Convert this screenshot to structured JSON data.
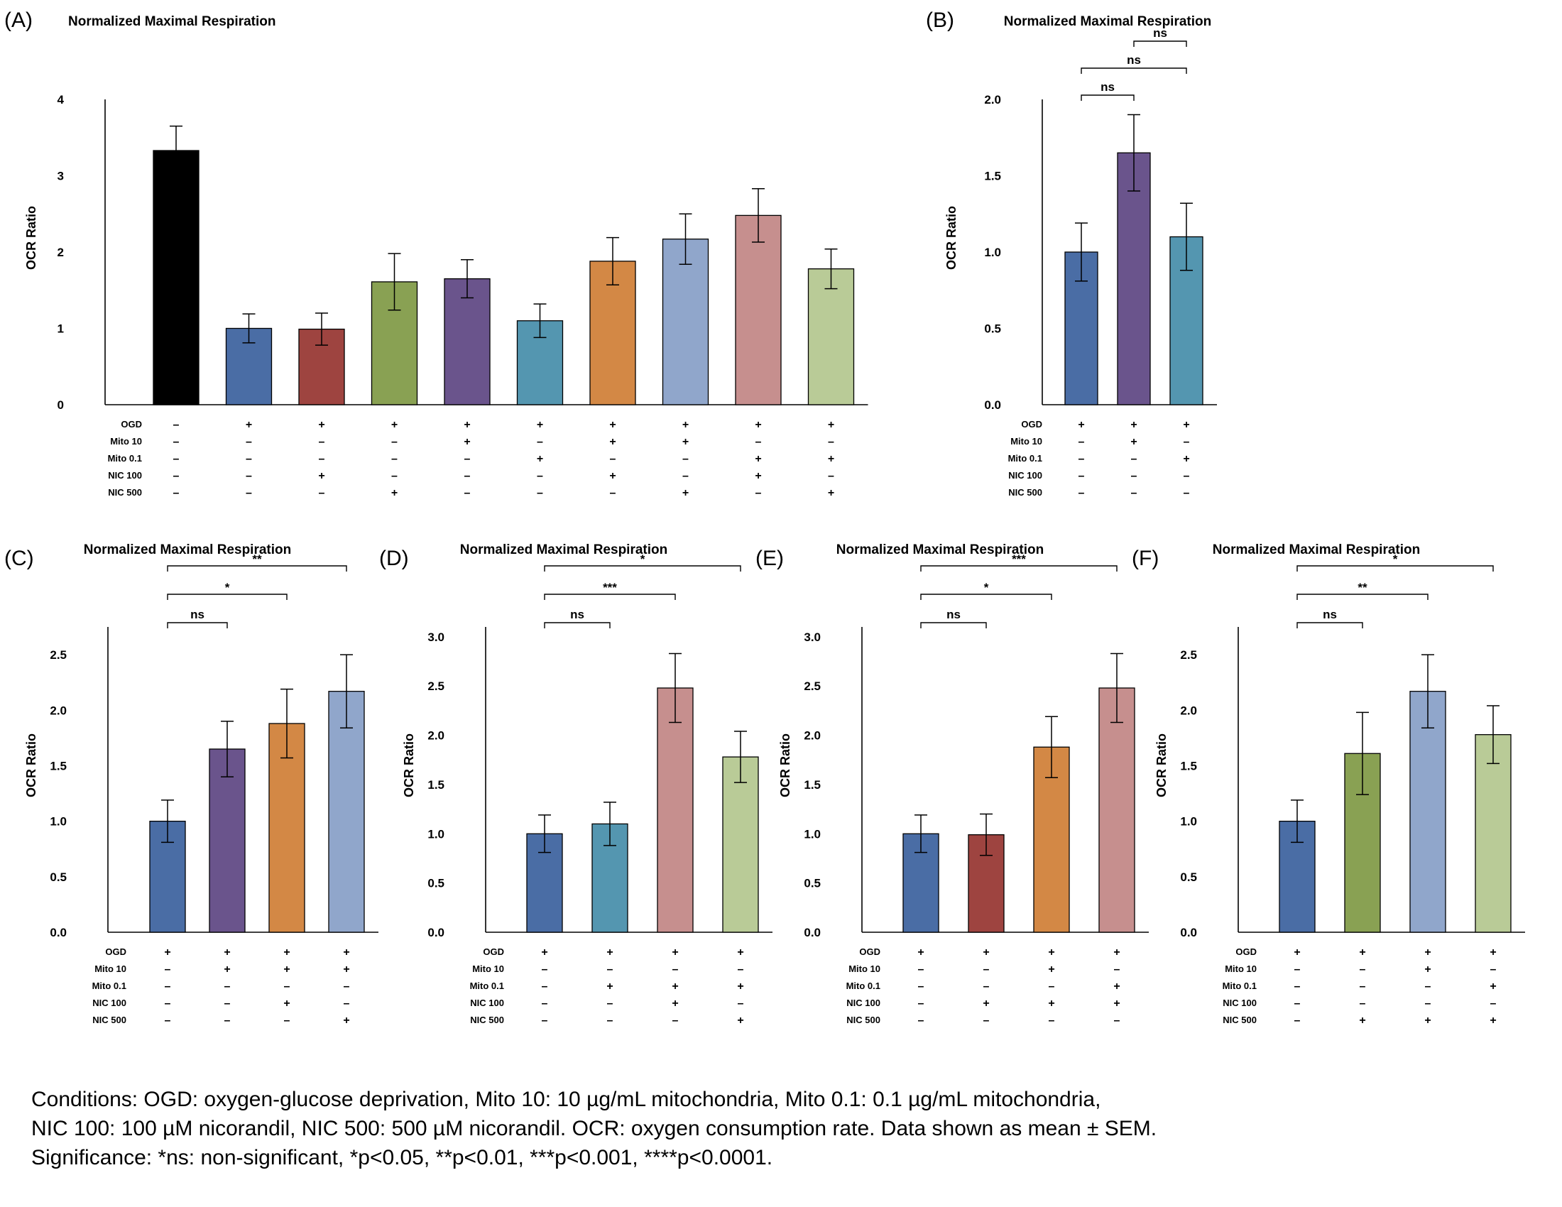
{
  "colors": {
    "black": "#000000",
    "blue": "#4a6da5",
    "red": "#9e4440",
    "olive": "#89a153",
    "purple": "#6a548c",
    "teal": "#5496b0",
    "orange": "#d38845",
    "lightblue": "#90a6cb",
    "pink": "#c68f8e",
    "lightgreen": "#b9cb97"
  },
  "chart_data": [
    {
      "id": "A",
      "panel_label": "(A)",
      "type": "bar",
      "title": "Normalized Maximal Respiration",
      "ylabel": "OCR Ratio",
      "ylim": [
        0,
        4
      ],
      "yticks": [
        0,
        1,
        2,
        3,
        4
      ],
      "ytick_labels": [
        "0",
        "1",
        "2",
        "3",
        "4"
      ],
      "grid": false,
      "bars": [
        {
          "value": 3.33,
          "err": 0.32,
          "color": "black"
        },
        {
          "value": 1.0,
          "err": 0.19,
          "color": "blue"
        },
        {
          "value": 0.99,
          "err": 0.21,
          "color": "red"
        },
        {
          "value": 1.61,
          "err": 0.37,
          "color": "olive"
        },
        {
          "value": 1.65,
          "err": 0.25,
          "color": "purple"
        },
        {
          "value": 1.1,
          "err": 0.22,
          "color": "teal"
        },
        {
          "value": 1.88,
          "err": 0.31,
          "color": "orange"
        },
        {
          "value": 2.17,
          "err": 0.33,
          "color": "lightblue"
        },
        {
          "value": 2.48,
          "err": 0.35,
          "color": "pink"
        },
        {
          "value": 1.78,
          "err": 0.26,
          "color": "lightgreen"
        }
      ],
      "conditions": [
        {
          "name": "OGD",
          "values": [
            "–",
            "+",
            "+",
            "+",
            "+",
            "+",
            "+",
            "+",
            "+",
            "+"
          ]
        },
        {
          "name": "Mito 10",
          "values": [
            "–",
            "–",
            "–",
            "–",
            "+",
            "–",
            "+",
            "+",
            "–",
            "–"
          ]
        },
        {
          "name": "Mito 0.1",
          "values": [
            "–",
            "–",
            "–",
            "–",
            "–",
            "+",
            "–",
            "–",
            "+",
            "+"
          ]
        },
        {
          "name": "NIC 100",
          "values": [
            "–",
            "–",
            "+",
            "–",
            "–",
            "–",
            "+",
            "–",
            "+",
            "–"
          ]
        },
        {
          "name": "NIC 500",
          "values": [
            "–",
            "–",
            "–",
            "+",
            "–",
            "–",
            "–",
            "+",
            "–",
            "+"
          ]
        }
      ],
      "brackets": []
    },
    {
      "id": "B",
      "panel_label": "(B)",
      "type": "bar",
      "title": "Normalized Maximal Respiration",
      "ylabel": "OCR Ratio",
      "ylim": [
        0,
        2.0
      ],
      "yticks": [
        0,
        0.5,
        1.0,
        1.5,
        2.0
      ],
      "ytick_labels": [
        "0.0",
        "0.5",
        "1.0",
        "1.5",
        "2.0"
      ],
      "grid": false,
      "bars": [
        {
          "value": 1.0,
          "err": 0.19,
          "color": "blue"
        },
        {
          "value": 1.65,
          "err": 0.25,
          "color": "purple"
        },
        {
          "value": 1.1,
          "err": 0.22,
          "color": "teal"
        }
      ],
      "conditions": [
        {
          "name": "OGD",
          "values": [
            "+",
            "+",
            "+"
          ]
        },
        {
          "name": "Mito 10",
          "values": [
            "–",
            "+",
            "–"
          ]
        },
        {
          "name": "Mito 0.1",
          "values": [
            "–",
            "–",
            "+"
          ]
        },
        {
          "name": "NIC 100",
          "values": [
            "–",
            "–",
            "–"
          ]
        },
        {
          "name": "NIC 500",
          "values": [
            "–",
            "–",
            "–"
          ]
        }
      ],
      "brackets": [
        {
          "from": 0,
          "to": 1,
          "label": "ns"
        },
        {
          "from": 0,
          "to": 2,
          "label": "ns"
        },
        {
          "from": 1,
          "to": 2,
          "label": "ns"
        }
      ]
    },
    {
      "id": "C",
      "panel_label": "(C)",
      "type": "bar",
      "title": "Normalized Maximal Respiration",
      "ylabel": "OCR Ratio",
      "ylim": [
        0,
        2.75
      ],
      "yticks": [
        0,
        0.5,
        1.0,
        1.5,
        2.0,
        2.5
      ],
      "ytick_labels": [
        "0.0",
        "0.5",
        "1.0",
        "1.5",
        "2.0",
        "2.5"
      ],
      "grid": false,
      "bars": [
        {
          "value": 1.0,
          "err": 0.19,
          "color": "blue"
        },
        {
          "value": 1.65,
          "err": 0.25,
          "color": "purple"
        },
        {
          "value": 1.88,
          "err": 0.31,
          "color": "orange"
        },
        {
          "value": 2.17,
          "err": 0.33,
          "color": "lightblue"
        }
      ],
      "conditions": [
        {
          "name": "OGD",
          "values": [
            "+",
            "+",
            "+",
            "+"
          ]
        },
        {
          "name": "Mito 10",
          "values": [
            "–",
            "+",
            "+",
            "+"
          ]
        },
        {
          "name": "Mito 0.1",
          "values": [
            "–",
            "–",
            "–",
            "–"
          ]
        },
        {
          "name": "NIC 100",
          "values": [
            "–",
            "–",
            "+",
            "–"
          ]
        },
        {
          "name": "NIC 500",
          "values": [
            "–",
            "–",
            "–",
            "+"
          ]
        }
      ],
      "brackets": [
        {
          "from": 0,
          "to": 1,
          "label": "ns"
        },
        {
          "from": 0,
          "to": 2,
          "label": "*"
        },
        {
          "from": 0,
          "to": 3,
          "label": "**"
        }
      ]
    },
    {
      "id": "D",
      "panel_label": "(D)",
      "type": "bar",
      "title": "Normalized Maximal Respiration",
      "ylabel": "OCR Ratio",
      "ylim": [
        0,
        3.1
      ],
      "yticks": [
        0,
        0.5,
        1.0,
        1.5,
        2.0,
        2.5,
        3.0
      ],
      "ytick_labels": [
        "0.0",
        "0.5",
        "1.0",
        "1.5",
        "2.0",
        "2.5",
        "3.0"
      ],
      "grid": false,
      "bars": [
        {
          "value": 1.0,
          "err": 0.19,
          "color": "blue"
        },
        {
          "value": 1.1,
          "err": 0.22,
          "color": "teal"
        },
        {
          "value": 2.48,
          "err": 0.35,
          "color": "pink"
        },
        {
          "value": 1.78,
          "err": 0.26,
          "color": "lightgreen"
        }
      ],
      "conditions": [
        {
          "name": "OGD",
          "values": [
            "+",
            "+",
            "+",
            "+"
          ]
        },
        {
          "name": "Mito 10",
          "values": [
            "–",
            "–",
            "–",
            "–"
          ]
        },
        {
          "name": "Mito 0.1",
          "values": [
            "–",
            "+",
            "+",
            "+"
          ]
        },
        {
          "name": "NIC 100",
          "values": [
            "–",
            "–",
            "+",
            "–"
          ]
        },
        {
          "name": "NIC 500",
          "values": [
            "–",
            "–",
            "–",
            "+"
          ]
        }
      ],
      "brackets": [
        {
          "from": 0,
          "to": 1,
          "label": "ns"
        },
        {
          "from": 0,
          "to": 2,
          "label": "***"
        },
        {
          "from": 0,
          "to": 3,
          "label": "*"
        }
      ]
    },
    {
      "id": "E",
      "panel_label": "(E)",
      "type": "bar",
      "title": "Normalized Maximal Respiration",
      "ylabel": "OCR Ratio",
      "ylim": [
        0,
        3.1
      ],
      "yticks": [
        0,
        0.5,
        1.0,
        1.5,
        2.0,
        2.5,
        3.0
      ],
      "ytick_labels": [
        "0.0",
        "0.5",
        "1.0",
        "1.5",
        "2.0",
        "2.5",
        "3.0"
      ],
      "grid": false,
      "bars": [
        {
          "value": 1.0,
          "err": 0.19,
          "color": "blue"
        },
        {
          "value": 0.99,
          "err": 0.21,
          "color": "red"
        },
        {
          "value": 1.88,
          "err": 0.31,
          "color": "orange"
        },
        {
          "value": 2.48,
          "err": 0.35,
          "color": "pink"
        }
      ],
      "conditions": [
        {
          "name": "OGD",
          "values": [
            "+",
            "+",
            "+",
            "+"
          ]
        },
        {
          "name": "Mito 10",
          "values": [
            "–",
            "–",
            "+",
            "–"
          ]
        },
        {
          "name": "Mito 0.1",
          "values": [
            "–",
            "–",
            "–",
            "+"
          ]
        },
        {
          "name": "NIC 100",
          "values": [
            "–",
            "+",
            "+",
            "+"
          ]
        },
        {
          "name": "NIC 500",
          "values": [
            "–",
            "–",
            "–",
            "–"
          ]
        }
      ],
      "brackets": [
        {
          "from": 0,
          "to": 1,
          "label": "ns"
        },
        {
          "from": 0,
          "to": 2,
          "label": "*"
        },
        {
          "from": 0,
          "to": 3,
          "label": "***"
        }
      ]
    },
    {
      "id": "F",
      "panel_label": "(F)",
      "type": "bar",
      "title": "Normalized Maximal Respiration",
      "ylabel": "OCR Ratio",
      "ylim": [
        0,
        2.75
      ],
      "yticks": [
        0,
        0.5,
        1.0,
        1.5,
        2.0,
        2.5
      ],
      "ytick_labels": [
        "0.0",
        "0.5",
        "1.0",
        "1.5",
        "2.0",
        "2.5"
      ],
      "grid": false,
      "bars": [
        {
          "value": 1.0,
          "err": 0.19,
          "color": "blue"
        },
        {
          "value": 1.61,
          "err": 0.37,
          "color": "olive"
        },
        {
          "value": 2.17,
          "err": 0.33,
          "color": "lightblue"
        },
        {
          "value": 1.78,
          "err": 0.26,
          "color": "lightgreen"
        }
      ],
      "conditions": [
        {
          "name": "OGD",
          "values": [
            "+",
            "+",
            "+",
            "+"
          ]
        },
        {
          "name": "Mito 10",
          "values": [
            "–",
            "–",
            "+",
            "–"
          ]
        },
        {
          "name": "Mito 0.1",
          "values": [
            "–",
            "–",
            "–",
            "+"
          ]
        },
        {
          "name": "NIC 100",
          "values": [
            "–",
            "–",
            "–",
            "–"
          ]
        },
        {
          "name": "NIC 500",
          "values": [
            "–",
            "+",
            "+",
            "+"
          ]
        }
      ],
      "brackets": [
        {
          "from": 0,
          "to": 1,
          "label": "ns"
        },
        {
          "from": 0,
          "to": 2,
          "label": "**"
        },
        {
          "from": 0,
          "to": 3,
          "label": "*"
        }
      ]
    }
  ],
  "caption": {
    "line1": "Conditions: OGD: oxygen-glucose deprivation, Mito 10: 10 µg/mL mitochondria, Mito 0.1: 0.1 µg/mL mitochondria,",
    "line2": "NIC 100: 100 µM nicorandil, NIC 500: 500 µM nicorandil. OCR: oxygen consumption rate. Data shown as mean ± SEM.",
    "line3": "Significance: *ns: non-significant, *p<0.05, **p<0.01, ***p<0.001, ****p<0.0001."
  }
}
